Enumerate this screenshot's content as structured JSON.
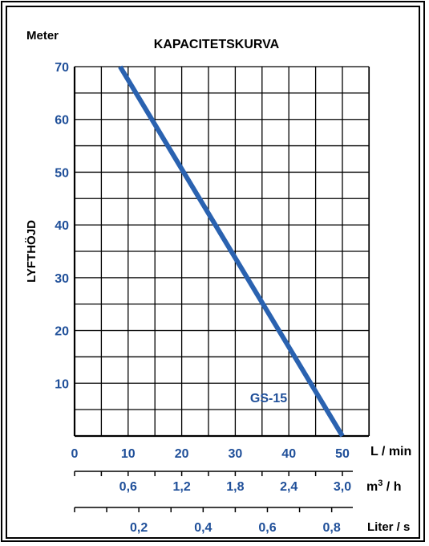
{
  "chart_data": {
    "type": "line",
    "title": "KAPACITETSKURVA",
    "y_unit_label": "Meter",
    "ylabel": "LYFTHÖJD",
    "ylim": [
      0,
      70
    ],
    "xlim": [
      0,
      50
    ],
    "y_ticks": [
      "10",
      "20",
      "30",
      "40",
      "50",
      "60",
      "70"
    ],
    "x_axes": [
      {
        "unit": "L / min",
        "ticks": [
          "0",
          "10",
          "20",
          "30",
          "40",
          "50"
        ]
      },
      {
        "unit": "m³ / h",
        "unit_base": "m",
        "unit_sup": "3",
        "unit_tail": " / h",
        "ticks": [
          "0,6",
          "1,2",
          "1,8",
          "2,4",
          "3,0"
        ]
      },
      {
        "unit": "Liter / s",
        "ticks": [
          "0,2",
          "0,4",
          "0,6",
          "0,8"
        ]
      }
    ],
    "grid": true,
    "series": [
      {
        "name": "GS-15",
        "x": [
          8.5,
          50
        ],
        "y": [
          70,
          0
        ]
      }
    ],
    "series_color": "#2a62b0",
    "tick_color": "#1f4f99"
  }
}
